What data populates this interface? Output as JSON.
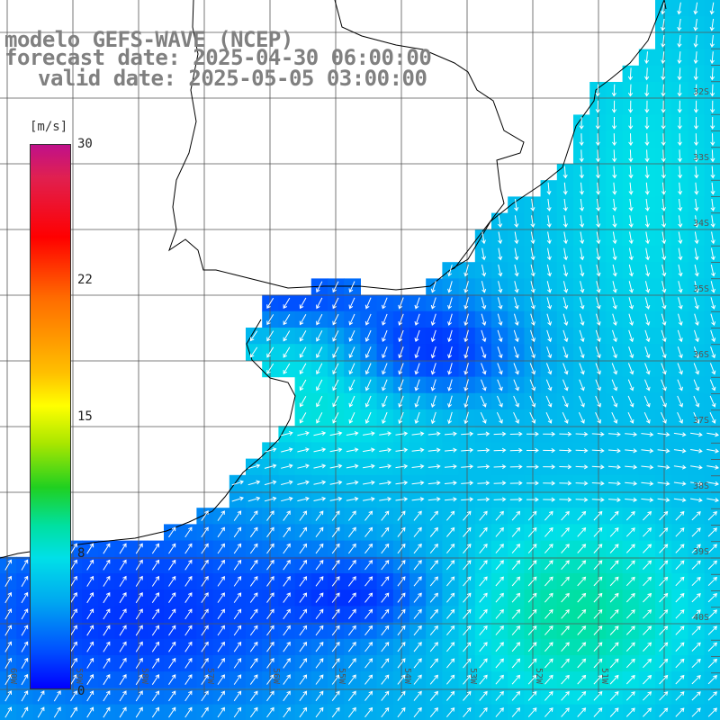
{
  "titles": {
    "model": "modelo GEFS-WAVE (NCEP)",
    "forecast": "forecast date: 2025-04-30 06:00:00",
    "valid": "valid date: 2025-05-05 03:00:00"
  },
  "colorbar": {
    "unit": "[m/s]",
    "ticks": [
      "30",
      "22",
      "15",
      "8",
      "0"
    ],
    "colors": [
      "#0000ff",
      "#0050ff",
      "#00a8f0",
      "#00e0e8",
      "#00e0a0",
      "#20d020",
      "#a8e600",
      "#ffff00",
      "#ffc000",
      "#ff6a00",
      "#ff0000",
      "#e02050",
      "#c0108a"
    ]
  },
  "lat_labels": [
    "32S",
    "33S",
    "34S",
    "35S",
    "36S",
    "37S",
    "38S",
    "39S",
    "40S"
  ],
  "lon_labels": [
    "60W",
    "59W",
    "58W",
    "57W",
    "56W",
    "55W",
    "54W",
    "53W",
    "52W",
    "51W"
  ],
  "colors": {
    "land": "#ffffff",
    "coast": "#000000",
    "grid": "#555555",
    "arrow": "#ffffff",
    "title": "#808080"
  }
}
